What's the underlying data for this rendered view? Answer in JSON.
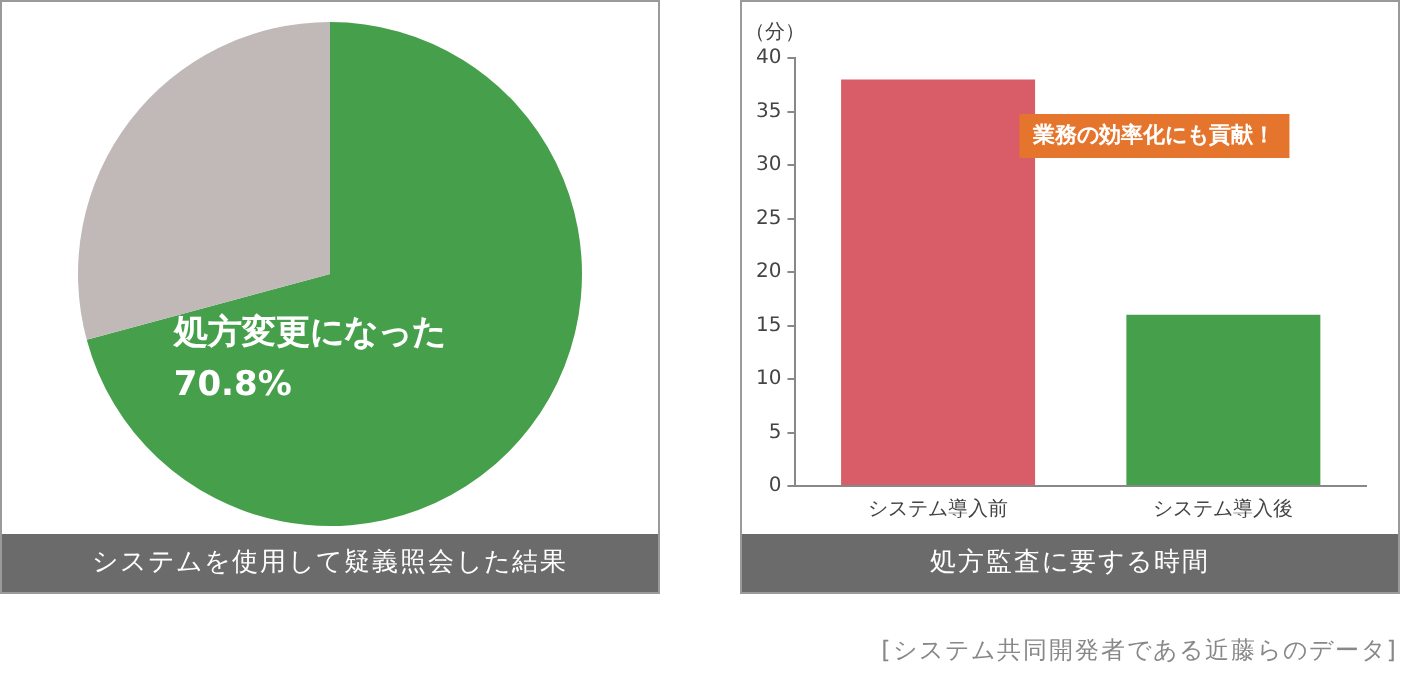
{
  "chart_data": [
    {
      "type": "pie",
      "title": "システムを使用して疑義照会した結果",
      "categories": [
        "処方変更になった",
        null
      ],
      "values": [
        70.8,
        29.2
      ],
      "colors": [
        "#46a04b",
        "#c1b8b8"
      ],
      "value_labels": [
        "70.8%",
        null
      ]
    },
    {
      "type": "bar",
      "title": "処方監査に要する時間",
      "ylabel": "（分）",
      "categories": [
        "システム導入前",
        "システム導入後"
      ],
      "values": [
        38,
        16
      ],
      "colors": [
        "#d95d69",
        "#46a04b"
      ],
      "ylim": [
        0,
        40
      ],
      "yticks": [
        0,
        5,
        10,
        15,
        20,
        25,
        30,
        35,
        40
      ],
      "annotations": [
        "業務の効率化にも貢献！",
        "[システム共同開発者である近藤らのデータ]"
      ]
    }
  ]
}
